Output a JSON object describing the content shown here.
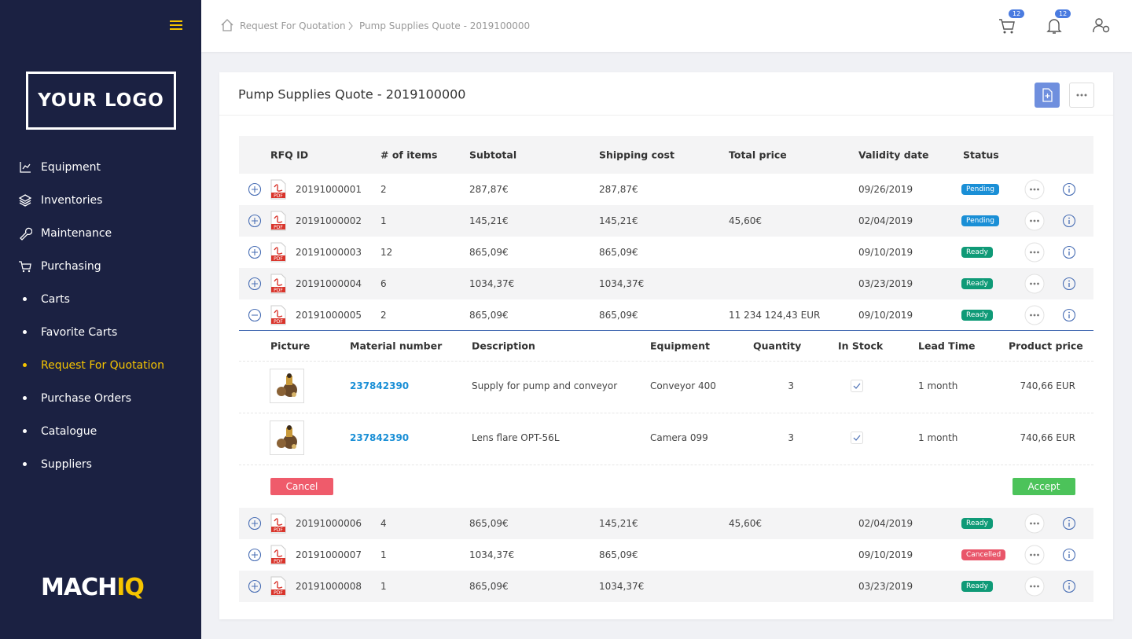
{
  "sidebar": {
    "logo": "YOUR LOGO",
    "menu": [
      "Equipment",
      "Inventories",
      "Maintenance",
      "Purchasing"
    ],
    "submenu": [
      "Carts",
      "Favorite Carts",
      "Request For Quotation",
      "Purchase Orders",
      "Catalogue",
      "Suppliers"
    ],
    "active_submenu": 2,
    "brand": {
      "main": "MACH",
      "accent": "IQ"
    }
  },
  "header": {
    "breadcrumb": [
      "Request For Quotation",
      "Pump Supplies Quote - 2019100000"
    ],
    "cart_count": 12,
    "notification_count": 12
  },
  "card": {
    "title": "Pump Supplies Quote - 2019100000"
  },
  "table": {
    "columns": [
      "RFQ ID",
      "# of items",
      "Subtotal",
      "Shipping cost",
      "Total price",
      "Validity date",
      "Status"
    ],
    "rows": [
      [
        "20191000001",
        2,
        "287,87€",
        "287,87€",
        null,
        "09/26/2019",
        "Pending"
      ],
      [
        "20191000002",
        1,
        "145,21€",
        "145,21€",
        "45,60€",
        "02/04/2019",
        "Pending"
      ],
      [
        "20191000003",
        12,
        "865,09€",
        "865,09€",
        null,
        "09/10/2019",
        "Ready"
      ],
      [
        "20191000004",
        6,
        "1034,37€",
        "1034,37€",
        null,
        "03/23/2019",
        "Ready"
      ],
      [
        "20191000005",
        2,
        "865,09€",
        "865,09€",
        "11 234 124,43 EUR",
        "09/10/2019",
        "Ready"
      ],
      [
        "20191000006",
        4,
        "865,09€",
        "145,21€",
        "45,60€",
        "02/04/2019",
        "Ready"
      ],
      [
        "20191000007",
        1,
        "1034,37€",
        "865,09€",
        null,
        "09/10/2019",
        "Cancelled"
      ],
      [
        "20191000008",
        1,
        "865,09€",
        "1034,37€",
        null,
        "03/23/2019",
        "Ready"
      ]
    ],
    "expanded_row": 4,
    "status_colors": {
      "Pending": "#1a8fd6",
      "Ready": "#0f9a77",
      "Cancelled": "#e9566a"
    }
  },
  "detail": {
    "columns": [
      "Picture",
      "Material number",
      "Description",
      "Equipment",
      "Quantity",
      "In Stock",
      "Lead Time",
      "Product price"
    ],
    "rows": [
      {
        "material": "237842390",
        "description": "Supply for pump and conveyor",
        "equipment": "Conveyor 400",
        "quantity": 3,
        "in_stock": true,
        "lead_time": "1 month",
        "price": "740,66 EUR"
      },
      {
        "material": "237842390",
        "description": "Lens flare OPT-56L",
        "equipment": "Camera 099",
        "quantity": 3,
        "in_stock": true,
        "lead_time": "1 month",
        "price": "740,66 EUR"
      }
    ],
    "cancel": "Cancel",
    "accept": "Accept"
  }
}
